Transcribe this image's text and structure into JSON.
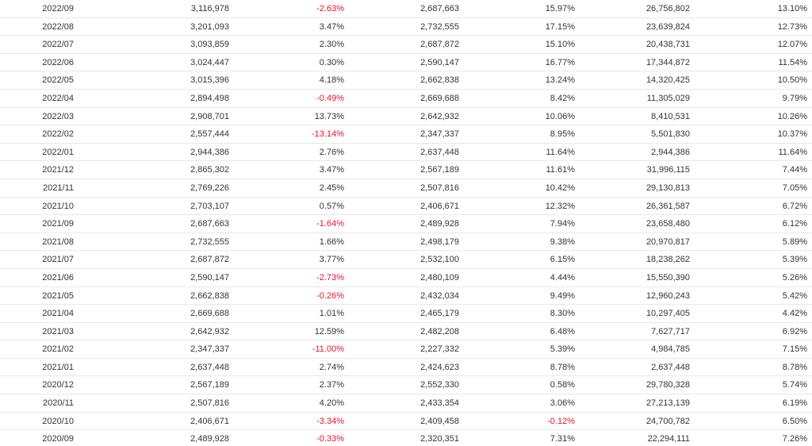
{
  "colors": {
    "negative": "#e8112d",
    "text": "#333333",
    "row_border": "#e8e8e8"
  },
  "table": {
    "rows": [
      [
        "2022/09",
        "3,116,978",
        "-2.63%",
        "2,687,663",
        "15.97%",
        "26,756,802",
        "13.10%"
      ],
      [
        "2022/08",
        "3,201,093",
        "3.47%",
        "2,732,555",
        "17.15%",
        "23,639,824",
        "12.73%"
      ],
      [
        "2022/07",
        "3,093,859",
        "2.30%",
        "2,687,872",
        "15.10%",
        "20,438,731",
        "12.07%"
      ],
      [
        "2022/06",
        "3,024,447",
        "0.30%",
        "2,590,147",
        "16.77%",
        "17,344,872",
        "11.54%"
      ],
      [
        "2022/05",
        "3,015,396",
        "4.18%",
        "2,662,838",
        "13.24%",
        "14,320,425",
        "10.50%"
      ],
      [
        "2022/04",
        "2,894,498",
        "-0.49%",
        "2,669,688",
        "8.42%",
        "11,305,029",
        "9.79%"
      ],
      [
        "2022/03",
        "2,908,701",
        "13.73%",
        "2,642,932",
        "10.06%",
        "8,410,531",
        "10.26%"
      ],
      [
        "2022/02",
        "2,557,444",
        "-13.14%",
        "2,347,337",
        "8.95%",
        "5,501,830",
        "10.37%"
      ],
      [
        "2022/01",
        "2,944,386",
        "2.76%",
        "2,637,448",
        "11.64%",
        "2,944,386",
        "11.64%"
      ],
      [
        "2021/12",
        "2,865,302",
        "3.47%",
        "2,567,189",
        "11.61%",
        "31,996,115",
        "7.44%"
      ],
      [
        "2021/11",
        "2,769,226",
        "2.45%",
        "2,507,816",
        "10.42%",
        "29,130,813",
        "7.05%"
      ],
      [
        "2021/10",
        "2,703,107",
        "0.57%",
        "2,406,671",
        "12.32%",
        "26,361,587",
        "6.72%"
      ],
      [
        "2021/09",
        "2,687,663",
        "-1.64%",
        "2,489,928",
        "7.94%",
        "23,658,480",
        "6.12%"
      ],
      [
        "2021/08",
        "2,732,555",
        "1.66%",
        "2,498,179",
        "9.38%",
        "20,970,817",
        "5.89%"
      ],
      [
        "2021/07",
        "2,687,872",
        "3.77%",
        "2,532,100",
        "6.15%",
        "18,238,262",
        "5.39%"
      ],
      [
        "2021/06",
        "2,590,147",
        "-2.73%",
        "2,480,109",
        "4.44%",
        "15,550,390",
        "5.26%"
      ],
      [
        "2021/05",
        "2,662,838",
        "-0.26%",
        "2,432,034",
        "9.49%",
        "12,960,243",
        "5.42%"
      ],
      [
        "2021/04",
        "2,669,688",
        "1.01%",
        "2,465,179",
        "8.30%",
        "10,297,405",
        "4.42%"
      ],
      [
        "2021/03",
        "2,642,932",
        "12.59%",
        "2,482,208",
        "6.48%",
        "7,627,717",
        "6.92%"
      ],
      [
        "2021/02",
        "2,347,337",
        "-11.00%",
        "2,227,332",
        "5.39%",
        "4,984,785",
        "7.15%"
      ],
      [
        "2021/01",
        "2,637,448",
        "2.74%",
        "2,424,623",
        "8.78%",
        "2,637,448",
        "8.78%"
      ],
      [
        "2020/12",
        "2,567,189",
        "2.37%",
        "2,552,330",
        "0.58%",
        "29,780,328",
        "5.74%"
      ],
      [
        "2020/11",
        "2,507,816",
        "4.20%",
        "2,433,354",
        "3.06%",
        "27,213,139",
        "6.19%"
      ],
      [
        "2020/10",
        "2,406,671",
        "-3.34%",
        "2,409,458",
        "-0.12%",
        "24,700,782",
        "6.50%"
      ],
      [
        "2020/09",
        "2,489,928",
        "-0.33%",
        "2,320,351",
        "7.31%",
        "22,294,111",
        "7.26%"
      ]
    ]
  }
}
